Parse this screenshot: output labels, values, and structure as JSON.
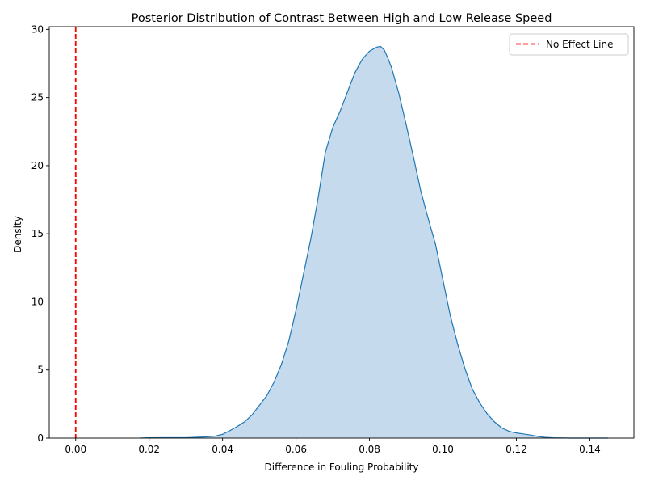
{
  "chart_data": {
    "type": "area",
    "title": "Posterior Distribution of Contrast Between High and Low Release Speed",
    "xlabel": "Difference in Fouling Probability",
    "ylabel": "Density",
    "xlim": [
      -0.0072,
      0.152
    ],
    "ylim": [
      0,
      30.2
    ],
    "xticks": [
      0.0,
      0.02,
      0.04,
      0.06,
      0.08,
      0.1,
      0.12,
      0.14
    ],
    "xtick_labels": [
      "0.00",
      "0.02",
      "0.04",
      "0.06",
      "0.08",
      "0.10",
      "0.12",
      "0.14"
    ],
    "yticks": [
      0,
      5,
      10,
      15,
      20,
      25,
      30
    ],
    "ytick_labels": [
      "0",
      "5",
      "10",
      "15",
      "20",
      "25",
      "30"
    ],
    "grid": false,
    "legend": {
      "position": "top-right"
    },
    "series": [
      {
        "kind": "kde",
        "color": "#1f77b4",
        "fill_color": "#c5dbed",
        "x": [
          0.0175,
          0.02,
          0.025,
          0.03,
          0.035,
          0.038,
          0.04,
          0.042,
          0.044,
          0.046,
          0.048,
          0.05,
          0.052,
          0.054,
          0.056,
          0.058,
          0.06,
          0.062,
          0.064,
          0.066,
          0.068,
          0.07,
          0.072,
          0.074,
          0.076,
          0.078,
          0.08,
          0.082,
          0.083,
          0.084,
          0.085,
          0.086,
          0.088,
          0.09,
          0.092,
          0.094,
          0.096,
          0.098,
          0.1,
          0.102,
          0.104,
          0.106,
          0.108,
          0.11,
          0.112,
          0.114,
          0.116,
          0.118,
          0.12,
          0.122,
          0.124,
          0.126,
          0.128,
          0.13,
          0.135,
          0.14,
          0.145
        ],
        "y": [
          0,
          0.02,
          0.03,
          0.03,
          0.08,
          0.15,
          0.28,
          0.55,
          0.85,
          1.2,
          1.7,
          2.4,
          3.1,
          4.1,
          5.4,
          7.1,
          9.4,
          12.0,
          14.6,
          17.6,
          21.0,
          22.8,
          24.0,
          25.4,
          26.8,
          27.8,
          28.4,
          28.7,
          28.75,
          28.5,
          27.9,
          27.2,
          25.3,
          23.0,
          20.6,
          18.1,
          16.1,
          14.2,
          11.6,
          9.0,
          6.9,
          5.1,
          3.6,
          2.6,
          1.8,
          1.2,
          0.75,
          0.5,
          0.38,
          0.3,
          0.22,
          0.12,
          0.05,
          0.02,
          0.0,
          0.0,
          0.0
        ]
      },
      {
        "kind": "vline",
        "name": "No Effect Line",
        "x": 0.0,
        "color": "#ff0000",
        "style": "dashed"
      }
    ]
  }
}
